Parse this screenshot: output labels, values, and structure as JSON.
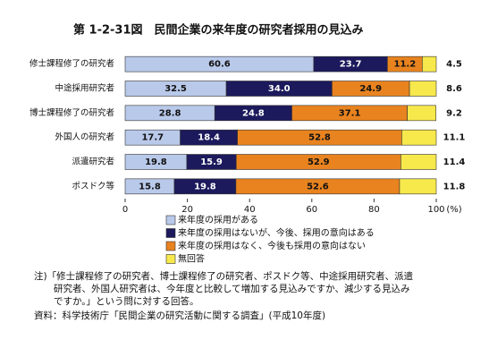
{
  "chart_data": {
    "type": "stacked-barh",
    "title": "第 1-2-31図　民間企業の来年度の研究者採用の見込み",
    "categories": [
      "修士課程修了の研究者",
      "中途採用研究者",
      "博士課程修了の研究者",
      "外国人の研究者",
      "派遣研究者",
      "ポスドク等"
    ],
    "series": [
      {
        "name": "来年度の採用がある",
        "color": "#b9c9ea",
        "values": [
          60.6,
          32.5,
          28.8,
          17.7,
          19.8,
          15.8
        ],
        "value_labels": [
          "60.6",
          "32.5",
          "28.8",
          "17.7",
          "19.8",
          "15.8"
        ]
      },
      {
        "name": "来年度の採用はないが、今後、採用の意向はある",
        "color": "#1c1a5c",
        "values": [
          23.7,
          34.0,
          24.8,
          18.4,
          15.9,
          19.8
        ],
        "value_labels": [
          "23.7",
          "34.0",
          "24.8",
          "18.4",
          "15.9",
          "19.8"
        ]
      },
      {
        "name": "来年度の採用はなく、今後も採用の意向はない",
        "color": "#e8831f",
        "values": [
          11.2,
          24.9,
          37.1,
          52.8,
          52.9,
          52.6
        ],
        "value_labels": [
          "11.2",
          "24.9",
          "37.1",
          "52.8",
          "52.9",
          "52.6"
        ]
      },
      {
        "name": "無回答",
        "color": "#f7e84c",
        "values": [
          4.5,
          8.6,
          9.2,
          11.1,
          11.4,
          11.8
        ],
        "value_labels": [
          "4.5",
          "8.6",
          "9.2",
          "11.1",
          "11.4",
          "11.8"
        ]
      }
    ],
    "xlim": [
      0,
      100
    ],
    "xticks": [
      0,
      20,
      40,
      60,
      80,
      100
    ],
    "xlabel": "(%)",
    "note": [
      "注)「修士課程修了の研究者、博士課程修了の研究者、ポスドク等、中途採用研究者、派遣",
      "研究者、外国人研究者は、今年度と比較して増加する見込みですか、減少する見込み",
      "ですか。」という問に対する回答。"
    ],
    "source": "資料：科学技術庁「民間企業の研究活動に関する調査」(平成10年度)"
  }
}
